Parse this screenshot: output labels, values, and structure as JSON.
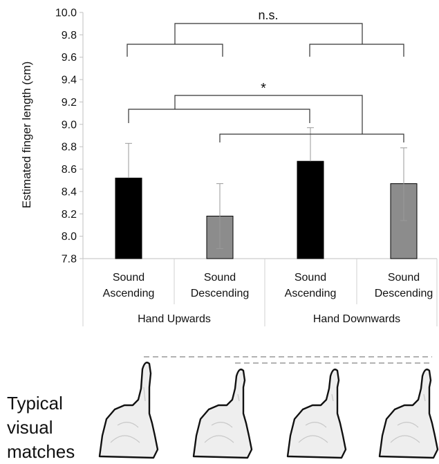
{
  "chart_data": {
    "type": "bar",
    "ylabel": "Estimated finger length (cm)",
    "xlabel": "",
    "ylim": [
      7.8,
      10.0
    ],
    "yticks": [
      "7.8",
      "8.0",
      "8.2",
      "8.4",
      "8.6",
      "8.8",
      "9.0",
      "9.2",
      "9.4",
      "9.6",
      "9.8",
      "10.0"
    ],
    "groups": [
      "Hand Upwards",
      "Hand Downwards"
    ],
    "categories": [
      [
        "Sound",
        "Ascending"
      ],
      [
        "Sound",
        "Descending"
      ],
      [
        "Sound",
        "Ascending"
      ],
      [
        "Sound",
        "Descending"
      ]
    ],
    "values": [
      8.52,
      8.18,
      8.67,
      8.47
    ],
    "error_upper": [
      8.83,
      8.47,
      8.97,
      8.79
    ],
    "error_lower": [
      8.52,
      7.89,
      8.67,
      8.14
    ],
    "bar_colors": [
      "#000000",
      "#8c8c8c",
      "#000000",
      "#8c8c8c"
    ],
    "annotations": [
      {
        "text": "n.s.",
        "level": 9.98
      },
      {
        "text": "*",
        "level": 9.3
      }
    ],
    "grid": false
  },
  "visual_matches": {
    "label_lines": [
      "Typical",
      "visual",
      "matches"
    ]
  }
}
